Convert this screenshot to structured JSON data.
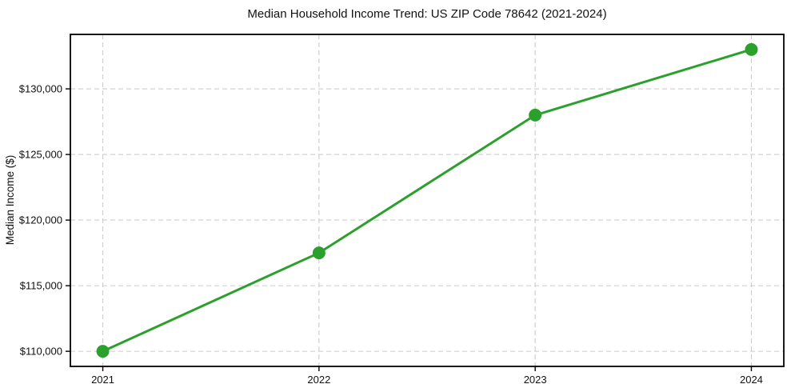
{
  "chart_data": {
    "type": "line",
    "title": "Median Household Income Trend: US ZIP Code 78642 (2021-2024)",
    "xlabel": "",
    "ylabel": "Median Income ($)",
    "x": [
      2021,
      2022,
      2023,
      2024
    ],
    "series": [
      {
        "name": "Median Household Income",
        "values": [
          110000,
          117500,
          128000,
          133000
        ]
      }
    ],
    "xlim": [
      2020.85,
      2024.15
    ],
    "ylim": [
      108850,
      134150
    ],
    "xticks": {
      "values": [
        2021,
        2022,
        2023,
        2024
      ],
      "labels": [
        "2021",
        "2022",
        "2023",
        "2024"
      ]
    },
    "yticks": {
      "values": [
        110000,
        115000,
        120000,
        125000,
        130000
      ],
      "labels": [
        "$110,000",
        "$115,000",
        "$120,000",
        "$125,000",
        "$130,000"
      ]
    },
    "grid": true,
    "grid_style": "dashed",
    "legend": "none",
    "style": {
      "line_color": "#2ca02c",
      "marker_color": "#2ca02c",
      "marker": "circle",
      "grid_color": "#cccccc",
      "spine_color": "#000000",
      "tick_color": "#000000",
      "text_color": "#111111",
      "background": "#ffffff"
    }
  }
}
